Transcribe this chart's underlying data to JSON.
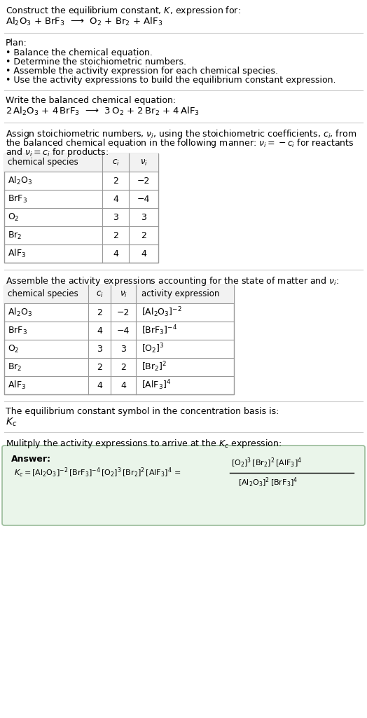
{
  "title_line1": "Construct the equilibrium constant, $K$, expression for:",
  "title_line2": "$\\mathrm{Al_2O_3}$ + $\\mathrm{BrF_3}$  ⟶  $\\mathrm{O_2}$ + $\\mathrm{Br_2}$ + $\\mathrm{AlF_3}$",
  "plan_header": "Plan:",
  "plan_items": [
    "• Balance the chemical equation.",
    "• Determine the stoichiometric numbers.",
    "• Assemble the activity expression for each chemical species.",
    "• Use the activity expressions to build the equilibrium constant expression."
  ],
  "balanced_header": "Write the balanced chemical equation:",
  "balanced_eq": "$2\\,\\mathrm{Al_2O_3}$ + $4\\,\\mathrm{BrF_3}$  ⟶  $3\\,\\mathrm{O_2}$ + $2\\,\\mathrm{Br_2}$ + $4\\,\\mathrm{AlF_3}$",
  "stoich_header1": "Assign stoichiometric numbers, $\\nu_i$, using the stoichiometric coefficients, $c_i$, from",
  "stoich_header2": "the balanced chemical equation in the following manner: $\\nu_i = -c_i$ for reactants",
  "stoich_header3": "and $\\nu_i = c_i$ for products:",
  "table1_cols": [
    "chemical species",
    "$c_i$",
    "$\\nu_i$"
  ],
  "table1_data": [
    [
      "$\\mathrm{Al_2O_3}$",
      "2",
      "−2"
    ],
    [
      "$\\mathrm{BrF_3}$",
      "4",
      "−4"
    ],
    [
      "$\\mathrm{O_2}$",
      "3",
      "3"
    ],
    [
      "$\\mathrm{Br_2}$",
      "2",
      "2"
    ],
    [
      "$\\mathrm{AlF_3}$",
      "4",
      "4"
    ]
  ],
  "activity_header": "Assemble the activity expressions accounting for the state of matter and $\\nu_i$:",
  "table2_cols": [
    "chemical species",
    "$c_i$",
    "$\\nu_i$",
    "activity expression"
  ],
  "table2_data": [
    [
      "$\\mathrm{Al_2O_3}$",
      "2",
      "−2",
      "$[\\mathrm{Al_2O_3}]^{-2}$"
    ],
    [
      "$\\mathrm{BrF_3}$",
      "4",
      "−4",
      "$[\\mathrm{BrF_3}]^{-4}$"
    ],
    [
      "$\\mathrm{O_2}$",
      "3",
      "3",
      "$[\\mathrm{O_2}]^3$"
    ],
    [
      "$\\mathrm{Br_2}$",
      "2",
      "2",
      "$[\\mathrm{Br_2}]^2$"
    ],
    [
      "$\\mathrm{AlF_3}$",
      "4",
      "4",
      "$[\\mathrm{AlF_3}]^4$"
    ]
  ],
  "kc_header": "The equilibrium constant symbol in the concentration basis is:",
  "kc_symbol": "$K_c$",
  "multiply_header": "Mulitply the activity expressions to arrive at the $K_c$ expression:",
  "answer_label": "Answer:",
  "kc_eq_line1": "$K_c = [\\mathrm{Al_2O_3}]^{-2}\\,[\\mathrm{BrF_3}]^{-4}\\,[\\mathrm{O_2}]^3\\,[\\mathrm{Br_2}]^2\\,[\\mathrm{AlF_3}]^4 = $",
  "kc_eq_right_num": "$[\\mathrm{O_2}]^3\\,[\\mathrm{Br_2}]^2\\,[\\mathrm{AlF_3}]^4$",
  "kc_eq_right_den": "$[\\mathrm{Al_2O_3}]^2\\,[\\mathrm{BrF_3}]^4$",
  "bg_color": "#ffffff",
  "table_border_color": "#999999",
  "answer_box_color": "#eaf5ea",
  "answer_box_border": "#99bb99",
  "text_color": "#000000",
  "font_size": 9.0
}
